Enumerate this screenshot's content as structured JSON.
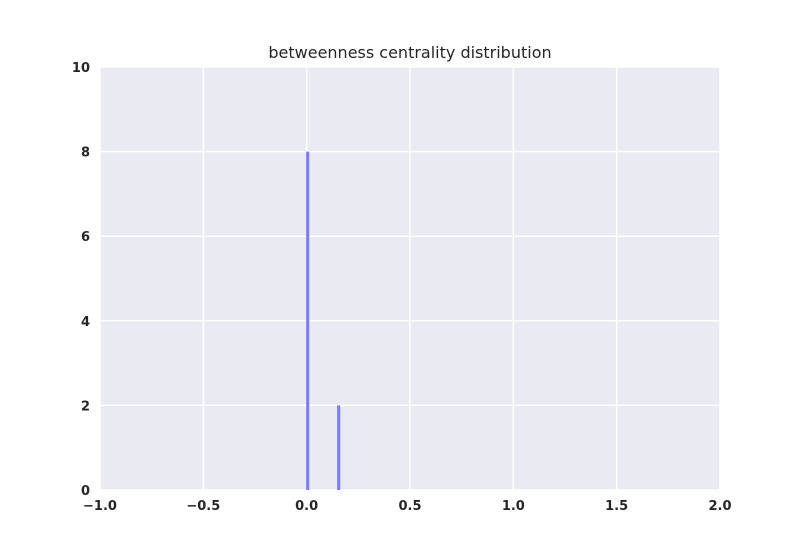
{
  "chart_data": {
    "type": "bar",
    "title": "betweenness centrality distribution",
    "xlabel": "",
    "ylabel": "",
    "xlim": [
      -1.0,
      2.0
    ],
    "ylim": [
      0,
      10
    ],
    "xticks": [
      -1.0,
      -0.5,
      0.0,
      0.5,
      1.0,
      1.5,
      2.0
    ],
    "xtick_labels": [
      "−1.0",
      "−0.5",
      "0.0",
      "0.5",
      "1.0",
      "1.5",
      "2.0"
    ],
    "yticks": [
      0,
      2,
      4,
      6,
      8,
      10
    ],
    "ytick_labels": [
      "0",
      "2",
      "4",
      "6",
      "8",
      "10"
    ],
    "grid": true,
    "background_color": "#eaeaf2",
    "bar_color": "#7b7bf5",
    "bars": [
      {
        "x": 0.005,
        "value": 8
      },
      {
        "x": 0.155,
        "value": 2
      }
    ],
    "bar_width": 0.015
  }
}
